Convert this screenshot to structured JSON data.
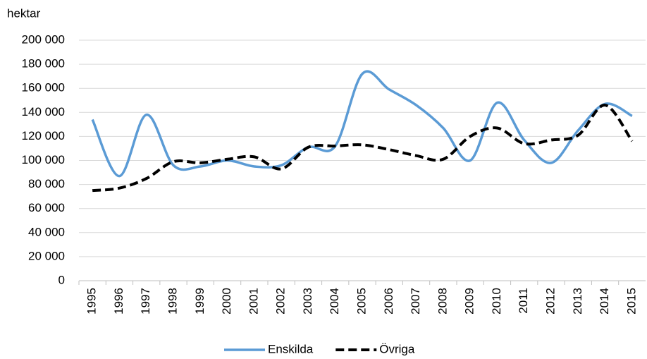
{
  "chart_data": {
    "type": "line",
    "y_label": "hektar",
    "categories": [
      "1995",
      "1996",
      "1997",
      "1998",
      "1999",
      "2000",
      "2001",
      "2002",
      "2003",
      "2004",
      "2005",
      "2006",
      "2007",
      "2008",
      "2009",
      "2010",
      "2011",
      "2012",
      "2013",
      "2014",
      "2015"
    ],
    "series": [
      {
        "name": "Enskilda",
        "color": "#5b9bd5",
        "dashed": false,
        "values": [
          134000,
          87000,
          138000,
          96000,
          95000,
          100000,
          95000,
          96000,
          111000,
          112000,
          172000,
          159000,
          146000,
          127000,
          100000,
          148000,
          117000,
          98000,
          125000,
          147000,
          137000
        ]
      },
      {
        "name": "Övriga",
        "color": "#000000",
        "dashed": true,
        "values": [
          75000,
          77000,
          85000,
          99000,
          98000,
          101000,
          103000,
          93000,
          111000,
          112000,
          113000,
          109000,
          104000,
          101000,
          120000,
          127000,
          114000,
          117000,
          121000,
          146000,
          116000
        ]
      }
    ],
    "ylim": [
      0,
      200000
    ],
    "yticks": [
      {
        "value": 0,
        "label": "0"
      },
      {
        "value": 20000,
        "label": "20 000"
      },
      {
        "value": 40000,
        "label": "40 000"
      },
      {
        "value": 60000,
        "label": "60 000"
      },
      {
        "value": 80000,
        "label": "80 000"
      },
      {
        "value": 100000,
        "label": "100 000"
      },
      {
        "value": 120000,
        "label": "120 000"
      },
      {
        "value": 140000,
        "label": "140 000"
      },
      {
        "value": 160000,
        "label": "160 000"
      },
      {
        "value": 180000,
        "label": "180 000"
      },
      {
        "value": 200000,
        "label": "200 000"
      }
    ],
    "grid": true,
    "smooth": true,
    "legend": "bottom"
  }
}
